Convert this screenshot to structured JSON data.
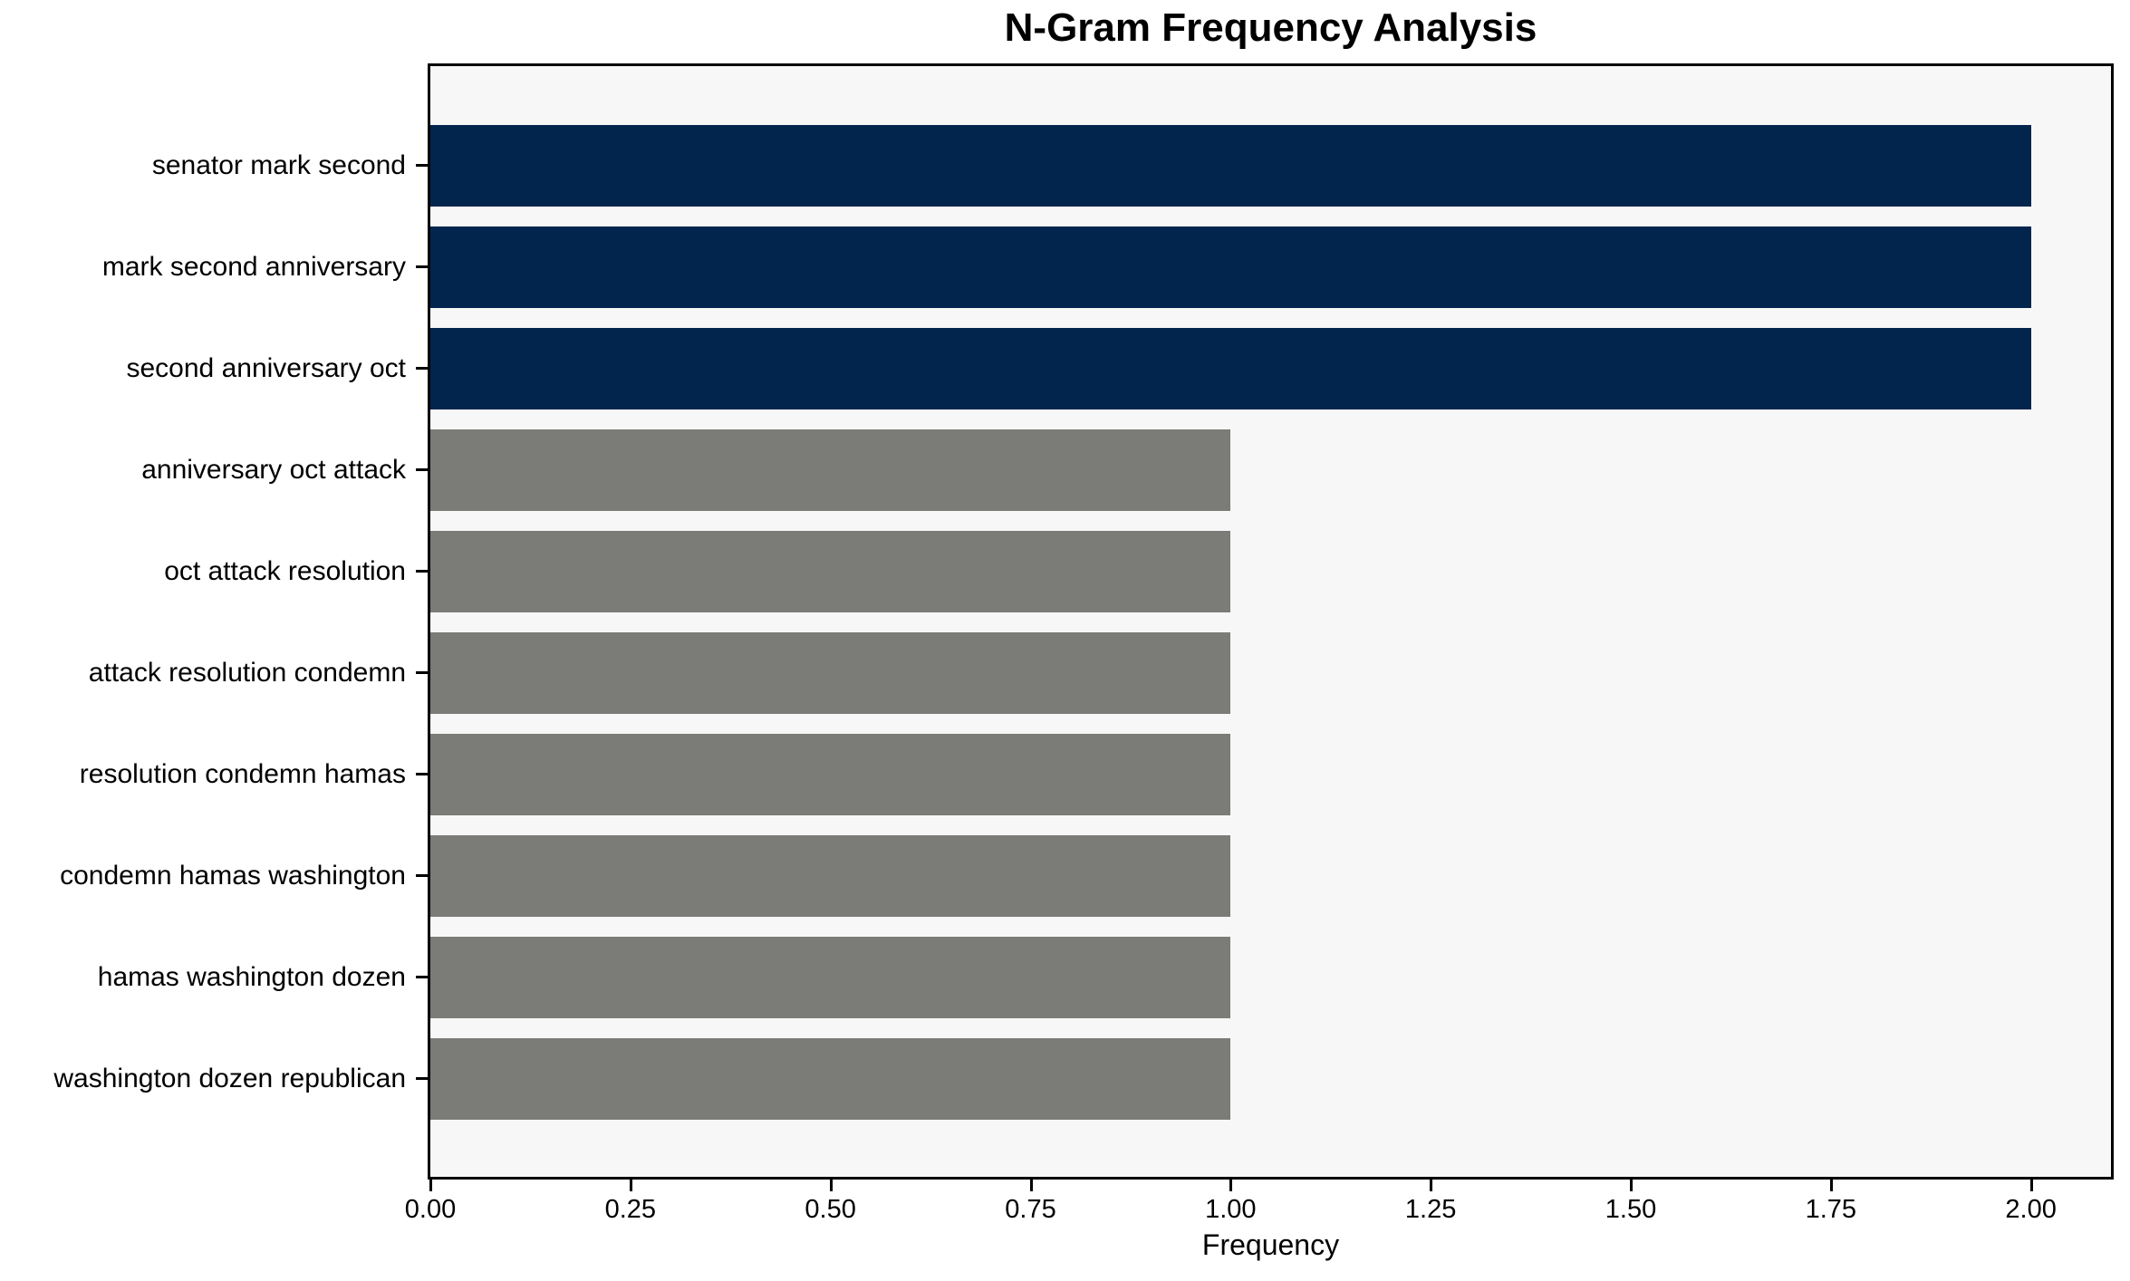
{
  "chart_data": {
    "type": "bar",
    "orientation": "horizontal",
    "title": "N-Gram Frequency Analysis",
    "xlabel": "Frequency",
    "ylabel": "",
    "categories": [
      "senator mark second",
      "mark second anniversary",
      "second anniversary oct",
      "anniversary oct attack",
      "oct attack resolution",
      "attack resolution condemn",
      "resolution condemn hamas",
      "condemn hamas washington",
      "hamas washington dozen",
      "washington dozen republican"
    ],
    "values": [
      2,
      2,
      2,
      1,
      1,
      1,
      1,
      1,
      1,
      1
    ],
    "bar_colors": [
      "#02254e",
      "#02254e",
      "#02254e",
      "#7b7b77",
      "#7b7b77",
      "#7b7b77",
      "#7b7b77",
      "#7b7b77",
      "#7b7b77",
      "#7b7b77"
    ],
    "highlight_color": "#02254e",
    "default_color": "#7b7b77",
    "plot_background": "#f7f7f8",
    "xlim": [
      0,
      2.1
    ],
    "xticks": [
      {
        "value": 0.0,
        "label": "0.00"
      },
      {
        "value": 0.25,
        "label": "0.25"
      },
      {
        "value": 0.5,
        "label": "0.50"
      },
      {
        "value": 0.75,
        "label": "0.75"
      },
      {
        "value": 1.0,
        "label": "1.00"
      },
      {
        "value": 1.25,
        "label": "1.25"
      },
      {
        "value": 1.5,
        "label": "1.50"
      },
      {
        "value": 1.75,
        "label": "1.75"
      },
      {
        "value": 2.0,
        "label": "2.00"
      }
    ],
    "grid": false,
    "legend": null
  }
}
